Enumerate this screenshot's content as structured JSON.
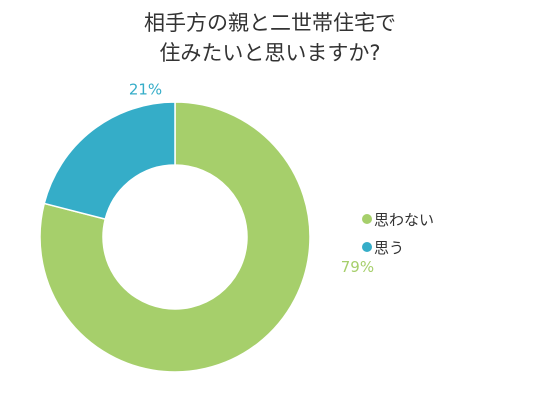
{
  "chart_data": {
    "type": "pie",
    "donut": true,
    "title_lines": [
      "相手方の親と二世帯住宅で",
      "住みたいと思いますか?"
    ],
    "slices": [
      {
        "label": "思わない",
        "value": 79,
        "value_label": "79%",
        "color": "#a6cf6b"
      },
      {
        "label": "思う",
        "value": 21,
        "value_label": "21%",
        "color": "#35adc8"
      }
    ],
    "legend_position": "right",
    "start": "top",
    "direction": "clockwise"
  }
}
